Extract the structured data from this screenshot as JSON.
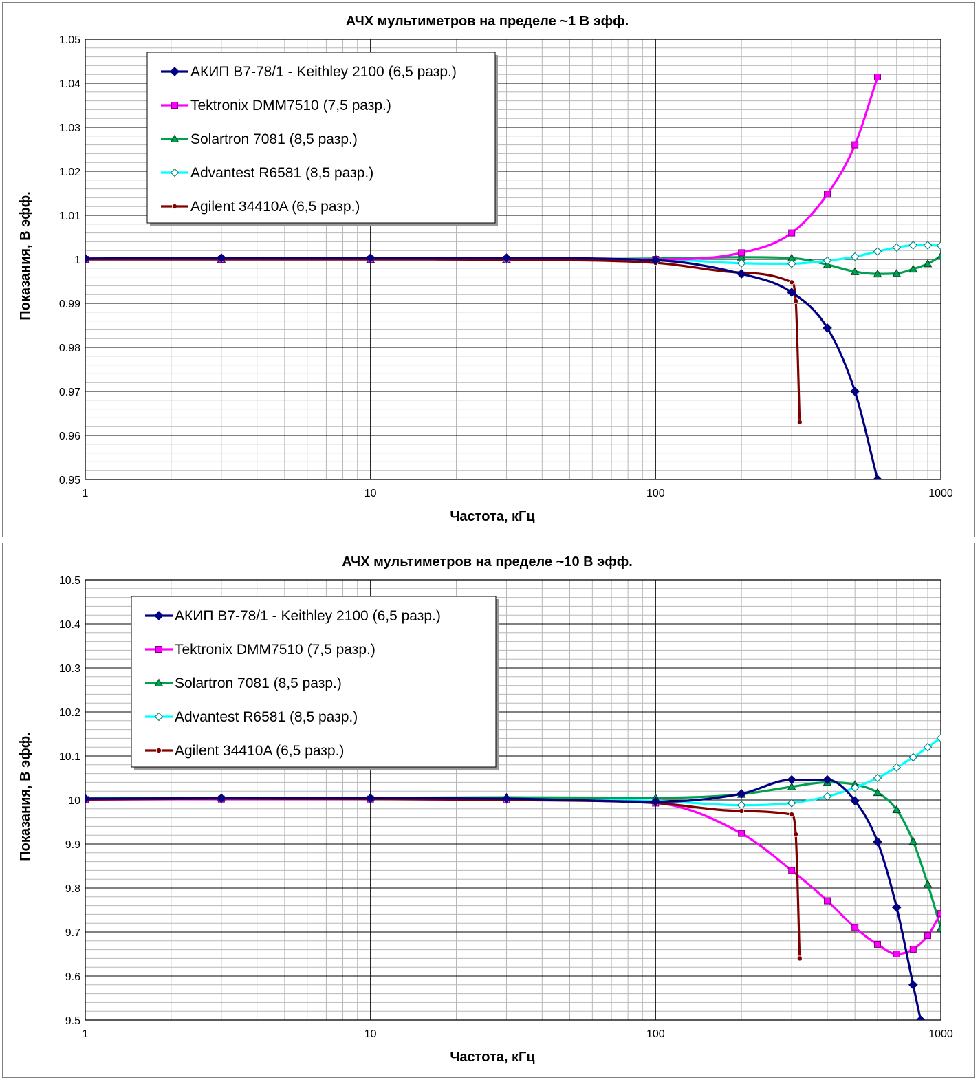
{
  "chart_data": [
    {
      "type": "line",
      "title": "АЧХ мультиметров на пределе ~1 В эфф.",
      "xlabel": "Частота, кГц",
      "ylabel": "Показания, В эфф.",
      "xscale": "log",
      "xlim": [
        1,
        1000
      ],
      "ylim": [
        0.95,
        1.05
      ],
      "xticks": [
        "1",
        "10",
        "100",
        "1000"
      ],
      "yticks": [
        "0.95",
        "0.96",
        "0.97",
        "0.98",
        "0.99",
        "1",
        "1.01",
        "1.02",
        "1.03",
        "1.04",
        "1.05"
      ],
      "legend_position": "top-left",
      "grid": true,
      "series": [
        {
          "name": "АКИП В7-78/1 - Keithley 2100 (6,5 разр.)",
          "color": "#000080",
          "marker": "diamond-filled",
          "x": [
            1,
            3,
            10,
            30,
            100,
            200,
            300,
            400,
            500,
            600
          ],
          "y": [
            1.0002,
            1.0003,
            1.0003,
            1.0003,
            0.9998,
            0.9967,
            0.9925,
            0.9844,
            0.97,
            0.95
          ]
        },
        {
          "name": "Tektronix DMM7510 (7,5 разр.)",
          "color": "#ff00ff",
          "marker": "square",
          "x": [
            1,
            3,
            10,
            30,
            100,
            200,
            300,
            400,
            500,
            600
          ],
          "y": [
            1.0,
            1.0,
            1.0,
            1.0,
            1.0,
            1.0015,
            1.006,
            1.0148,
            1.026,
            1.0414
          ]
        },
        {
          "name": "Solartron 7081 (8,5 разр.)",
          "color": "#00a050",
          "marker": "triangle",
          "x": [
            1,
            3,
            10,
            30,
            100,
            200,
            300,
            400,
            500,
            600,
            700,
            800,
            900,
            1000
          ],
          "y": [
            1.0,
            1.0,
            1.0,
            1.0,
            1.0002,
            1.0005,
            1.0003,
            0.9988,
            0.9972,
            0.9967,
            0.9968,
            0.9978,
            0.999,
            1.0007
          ]
        },
        {
          "name": "Advantest R6581 (8,5 разр.)",
          "color": "#00ffff",
          "marker": "diamond-open",
          "x": [
            1,
            3,
            10,
            30,
            100,
            200,
            300,
            400,
            500,
            600,
            700,
            800,
            900,
            1000
          ],
          "y": [
            1.0,
            1.0,
            1.0,
            1.0,
            1.0,
            0.9991,
            0.999,
            0.9997,
            1.0006,
            1.0018,
            1.0027,
            1.0032,
            1.0032,
            1.0031
          ]
        },
        {
          "name": "Agilent 34410A (6,5 разр.)",
          "color": "#800000",
          "marker": "dot",
          "x": [
            1,
            3,
            10,
            30,
            100,
            200,
            300,
            310,
            320
          ],
          "y": [
            1.0,
            1.0,
            1.0,
            0.9999,
            0.9992,
            0.997,
            0.9948,
            0.9905,
            0.963
          ]
        }
      ]
    },
    {
      "type": "line",
      "title": "АЧХ мультиметров на пределе ~10 В эфф.",
      "xlabel": "Частота, кГц",
      "ylabel": "Показания, В эфф.",
      "xscale": "log",
      "xlim": [
        1,
        1000
      ],
      "ylim": [
        9.5,
        10.5
      ],
      "xticks": [
        "1",
        "10",
        "100",
        "1000"
      ],
      "yticks": [
        "9.5",
        "9.6",
        "9.7",
        "9.8",
        "9.9",
        "10",
        "10.1",
        "10.2",
        "10.3",
        "10.4",
        "10.5"
      ],
      "legend_position": "top-left",
      "grid": true,
      "series": [
        {
          "name": "АКИП В7-78/1 - Keithley 2100 (6,5 разр.)",
          "color": "#000080",
          "marker": "diamond-filled",
          "x": [
            1,
            3,
            10,
            30,
            100,
            200,
            300,
            400,
            500,
            600,
            700,
            800,
            850
          ],
          "y": [
            10.003,
            10.004,
            10.004,
            10.003,
            9.996,
            10.014,
            10.046,
            10.046,
            9.998,
            9.905,
            9.756,
            9.58,
            9.5
          ]
        },
        {
          "name": "Tektronix DMM7510 (7,5 разр.)",
          "color": "#ff00ff",
          "marker": "square",
          "x": [
            1,
            3,
            10,
            30,
            100,
            200,
            300,
            400,
            500,
            600,
            700,
            800,
            900,
            1000
          ],
          "y": [
            10.001,
            10.002,
            10.002,
            10.0,
            9.993,
            9.924,
            9.84,
            9.771,
            9.71,
            9.672,
            9.65,
            9.661,
            9.692,
            9.742
          ]
        },
        {
          "name": "Solartron 7081 (8,5 разр.)",
          "color": "#00a050",
          "marker": "triangle",
          "x": [
            1,
            3,
            10,
            30,
            100,
            200,
            300,
            400,
            500,
            600,
            700,
            800,
            900,
            1000
          ],
          "y": [
            10.004,
            10.005,
            10.005,
            10.006,
            10.005,
            10.013,
            10.03,
            10.04,
            10.035,
            10.017,
            9.978,
            9.906,
            9.809,
            9.709
          ]
        },
        {
          "name": "Advantest R6581 (8,5 разр.)",
          "color": "#00ffff",
          "marker": "diamond-open",
          "x": [
            1,
            3,
            10,
            30,
            100,
            200,
            300,
            400,
            500,
            600,
            700,
            800,
            900,
            1000
          ],
          "y": [
            10.002,
            10.003,
            10.002,
            10.001,
            9.998,
            9.988,
            9.993,
            10.008,
            10.028,
            10.05,
            10.074,
            10.097,
            10.12,
            10.141
          ]
        },
        {
          "name": "Agilent 34410A (6,5 разр.)",
          "color": "#800000",
          "marker": "dot",
          "x": [
            1,
            3,
            10,
            30,
            100,
            200,
            300,
            310,
            320
          ],
          "y": [
            10.001,
            10.003,
            10.002,
            10.0,
            9.993,
            9.975,
            9.967,
            9.922,
            9.64
          ]
        }
      ]
    }
  ]
}
